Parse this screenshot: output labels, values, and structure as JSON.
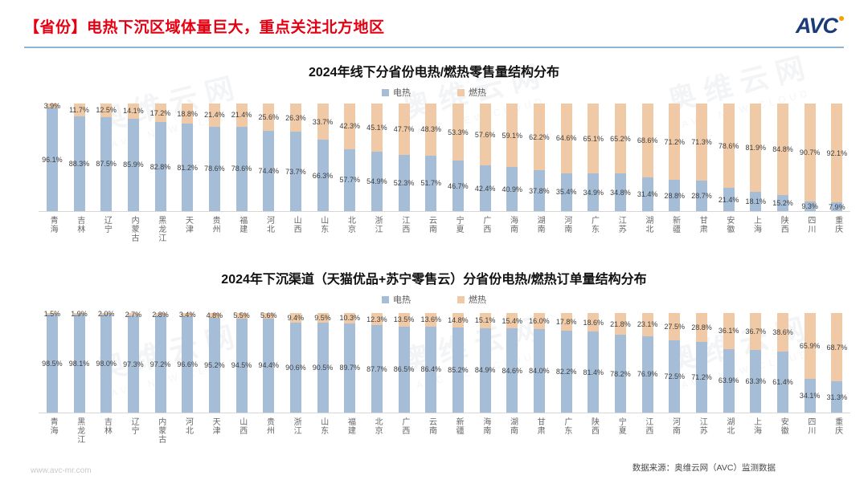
{
  "page": {
    "title": "【省份】电热下沉区域体量巨大，重点关注北方地区",
    "logo": "AVC",
    "footer_left": "www.avc-mr.com",
    "footer_right": "数据来源：奥维云网（AVC）监测数据",
    "watermark": {
      "cn": "奥维云网",
      "en": "AVC NEW CLOUD"
    },
    "colors": {
      "electric": "#A6BDD7",
      "gas": "#F0CAA6",
      "title_red": "#E60012",
      "divider_blue": "#8FB4D4",
      "logo_navy": "#1B3A78",
      "logo_dot_orange": "#F5A200"
    }
  },
  "chart_data": [
    {
      "type": "bar",
      "stacked": true,
      "percent": true,
      "title": "2024年线下分省份电热/燃热零售量结构分布",
      "legend": [
        "电热",
        "燃热"
      ],
      "legend_position": "top-center",
      "ylim": [
        0,
        100
      ],
      "unit": "%",
      "categories": [
        "青海",
        "吉林",
        "辽宁",
        "内蒙古",
        "黑龙江",
        "天津",
        "贵州",
        "福建",
        "河北",
        "山西",
        "山东",
        "北京",
        "浙江",
        "江西",
        "云南",
        "宁夏",
        "广西",
        "海南",
        "湖南",
        "河南",
        "广东",
        "江苏",
        "湖北",
        "新疆",
        "甘肃",
        "安徽",
        "上海",
        "陕西",
        "四川",
        "重庆"
      ],
      "series": [
        {
          "name": "电热",
          "values": [
            96.1,
            88.3,
            87.5,
            85.9,
            82.8,
            81.2,
            78.6,
            78.6,
            74.4,
            73.7,
            66.3,
            57.7,
            54.9,
            52.3,
            51.7,
            46.7,
            42.4,
            40.9,
            37.8,
            35.4,
            34.9,
            34.8,
            31.4,
            28.8,
            28.7,
            21.4,
            18.1,
            15.2,
            9.3,
            7.9
          ]
        },
        {
          "name": "燃热",
          "values": [
            3.9,
            11.7,
            12.5,
            14.1,
            17.2,
            18.8,
            21.4,
            21.4,
            25.6,
            26.3,
            33.7,
            42.3,
            45.1,
            47.7,
            48.3,
            53.3,
            57.6,
            59.1,
            62.2,
            64.6,
            65.1,
            65.2,
            68.6,
            71.2,
            71.3,
            78.6,
            81.9,
            84.8,
            90.7,
            92.1
          ]
        }
      ]
    },
    {
      "type": "bar",
      "stacked": true,
      "percent": true,
      "title": "2024年下沉渠道（天猫优品+苏宁零售云）分省份电热/燃热订单量结构分布",
      "legend": [
        "电热",
        "燃热"
      ],
      "legend_position": "top-center",
      "ylim": [
        0,
        100
      ],
      "unit": "%",
      "categories": [
        "青海",
        "黑龙江",
        "吉林",
        "辽宁",
        "内蒙古",
        "河北",
        "天津",
        "山西",
        "贵州",
        "浙江",
        "山东",
        "福建",
        "北京",
        "广西",
        "云南",
        "新疆",
        "海南",
        "湖南",
        "甘肃",
        "广东",
        "陕西",
        "宁夏",
        "江西",
        "河南",
        "江苏",
        "湖北",
        "上海",
        "安徽",
        "四川",
        "重庆"
      ],
      "series": [
        {
          "name": "电热",
          "values": [
            98.5,
            98.1,
            98.0,
            97.3,
            97.2,
            96.6,
            95.2,
            94.5,
            94.4,
            90.6,
            90.5,
            89.7,
            87.7,
            86.5,
            86.4,
            85.2,
            84.9,
            84.6,
            84.0,
            82.2,
            81.4,
            78.2,
            76.9,
            72.5,
            71.2,
            63.9,
            63.3,
            61.4,
            34.1,
            31.3
          ]
        },
        {
          "name": "燃热",
          "values": [
            1.5,
            1.9,
            2.0,
            2.7,
            2.8,
            3.4,
            4.8,
            5.5,
            5.6,
            9.4,
            9.5,
            10.3,
            12.3,
            13.5,
            13.6,
            14.8,
            15.1,
            15.4,
            16.0,
            17.8,
            18.6,
            21.8,
            23.1,
            27.5,
            28.8,
            36.1,
            36.7,
            38.6,
            65.9,
            68.7
          ]
        }
      ]
    }
  ]
}
